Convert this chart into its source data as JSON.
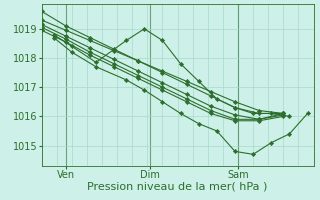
{
  "bg_color": "#cdf0e8",
  "grid_color": "#a8d8cc",
  "line_color": "#2d6e2d",
  "marker_color": "#2d6e2d",
  "xlabel": "Pression niveau de la mer( hPa )",
  "xlabel_fontsize": 8,
  "tick_fontsize": 7,
  "ylim": [
    1014.3,
    1019.85
  ],
  "yticks": [
    1015,
    1016,
    1017,
    1018,
    1019
  ],
  "xtick_labels": [
    "Ven",
    "Dim",
    "Sam"
  ],
  "xtick_positions": [
    8,
    36,
    65
  ],
  "vline_positions": [
    8,
    36,
    65
  ],
  "xlim": [
    0,
    90
  ],
  "num_vgrid": 18,
  "series_x": [
    [
      0,
      8,
      16,
      24,
      32,
      40,
      48,
      56,
      64,
      72,
      80
    ],
    [
      0,
      8,
      16,
      24,
      32,
      40,
      48,
      56,
      64,
      72,
      80
    ],
    [
      0,
      8,
      16,
      24,
      32,
      40,
      48,
      56,
      64,
      72,
      80
    ],
    [
      0,
      8,
      16,
      24,
      32,
      40,
      48,
      56,
      64,
      72,
      80
    ],
    [
      0,
      8,
      16,
      24,
      32,
      40,
      48,
      56,
      64,
      72,
      80
    ],
    [
      4,
      10,
      18,
      28,
      34,
      40,
      46,
      52,
      58,
      64,
      70,
      76,
      82
    ],
    [
      4,
      10,
      18,
      28,
      34,
      40,
      46,
      52,
      58,
      64,
      70,
      76,
      82,
      88
    ]
  ],
  "series_y": [
    [
      1019.6,
      1019.1,
      1018.7,
      1018.3,
      1017.9,
      1017.5,
      1017.1,
      1016.7,
      1016.3,
      1016.1,
      1016.1
    ],
    [
      1019.3,
      1018.95,
      1018.6,
      1018.25,
      1017.9,
      1017.55,
      1017.2,
      1016.85,
      1016.5,
      1016.2,
      1016.1
    ],
    [
      1019.15,
      1018.75,
      1018.35,
      1017.95,
      1017.55,
      1017.15,
      1016.75,
      1016.35,
      1016.05,
      1015.9,
      1016.1
    ],
    [
      1019.05,
      1018.65,
      1018.2,
      1017.8,
      1017.4,
      1017.0,
      1016.6,
      1016.2,
      1015.9,
      1015.9,
      1016.05
    ],
    [
      1018.95,
      1018.55,
      1018.1,
      1017.7,
      1017.3,
      1016.9,
      1016.5,
      1016.1,
      1015.85,
      1015.85,
      1016.0
    ],
    [
      1018.8,
      1018.4,
      1017.85,
      1018.6,
      1019.0,
      1018.6,
      1017.8,
      1017.2,
      1016.6,
      1016.3,
      1016.1,
      1016.1,
      1016.0
    ],
    [
      1018.7,
      1018.2,
      1017.7,
      1017.25,
      1016.9,
      1016.5,
      1016.1,
      1015.75,
      1015.5,
      1014.8,
      1014.7,
      1015.1,
      1015.4,
      1016.1
    ]
  ]
}
